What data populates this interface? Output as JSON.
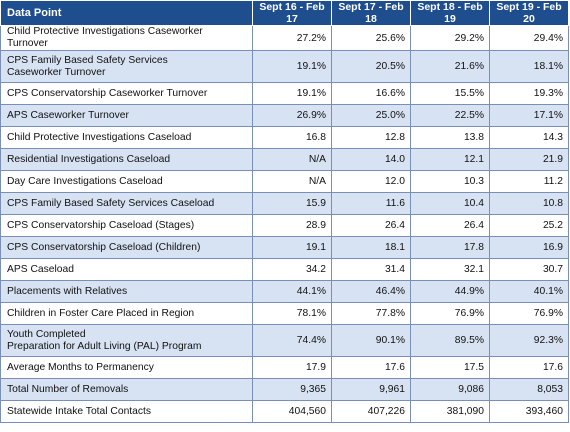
{
  "table": {
    "columns": [
      "Data Point",
      "Sept 16 - Feb 17",
      "Sept 17 - Feb 18",
      "Sept 18 - Feb 19",
      "Sept 19 - Feb 20"
    ],
    "rows": [
      {
        "label": "Child Protective Investigations Caseworker Turnover",
        "values": [
          "27.2%",
          "25.6%",
          "29.2%",
          "29.4%"
        ]
      },
      {
        "label": "CPS Family Based Safety Services\nCaseworker Turnover",
        "values": [
          "19.1%",
          "20.5%",
          "21.6%",
          "18.1%"
        ]
      },
      {
        "label": "CPS Conservatorship Caseworker Turnover",
        "values": [
          "19.1%",
          "16.6%",
          "15.5%",
          "19.3%"
        ]
      },
      {
        "label": "APS Caseworker Turnover",
        "values": [
          "26.9%",
          "25.0%",
          "22.5%",
          "17.1%"
        ]
      },
      {
        "label": "Child Protective Investigations Caseload",
        "values": [
          "16.8",
          "12.8",
          "13.8",
          "14.3"
        ]
      },
      {
        "label": "Residential Investigations Caseload",
        "values": [
          "N/A",
          "14.0",
          "12.1",
          "21.9"
        ]
      },
      {
        "label": "Day Care Investigations Caseload",
        "values": [
          "N/A",
          "12.0",
          "10.3",
          "11.2"
        ]
      },
      {
        "label": "CPS Family Based Safety Services Caseload",
        "values": [
          "15.9",
          "11.6",
          "10.4",
          "10.8"
        ]
      },
      {
        "label": "CPS Conservatorship Caseload (Stages)",
        "values": [
          "28.9",
          "26.4",
          "26.4",
          "25.2"
        ]
      },
      {
        "label": "CPS Conservatorship Caseload (Children)",
        "values": [
          "19.1",
          "18.1",
          "17.8",
          "16.9"
        ]
      },
      {
        "label": "APS Caseload",
        "values": [
          "34.2",
          "31.4",
          "32.1",
          "30.7"
        ]
      },
      {
        "label": "Placements with Relatives",
        "values": [
          "44.1%",
          "46.4%",
          "44.9%",
          "40.1%"
        ]
      },
      {
        "label": "Children in Foster Care Placed in Region",
        "values": [
          "78.1%",
          "77.8%",
          "76.9%",
          "76.9%"
        ]
      },
      {
        "label": "Youth Completed\nPreparation for Adult Living (PAL) Program",
        "values": [
          "74.4%",
          "90.1%",
          "89.5%",
          "92.3%"
        ]
      },
      {
        "label": "Average Months to Permanency",
        "values": [
          "17.9",
          "17.6",
          "17.5",
          "17.6"
        ]
      },
      {
        "label": "Total Number of Removals",
        "values": [
          "9,365",
          "9,961",
          "9,086",
          "8,053"
        ]
      },
      {
        "label": "Statewide Intake Total Contacts",
        "values": [
          "404,560",
          "407,226",
          "381,090",
          "393,460"
        ]
      }
    ]
  },
  "colors": {
    "header_bg": "#1f4e8f",
    "stripe": "#d7e3f3",
    "border": "#7a8fb5"
  }
}
